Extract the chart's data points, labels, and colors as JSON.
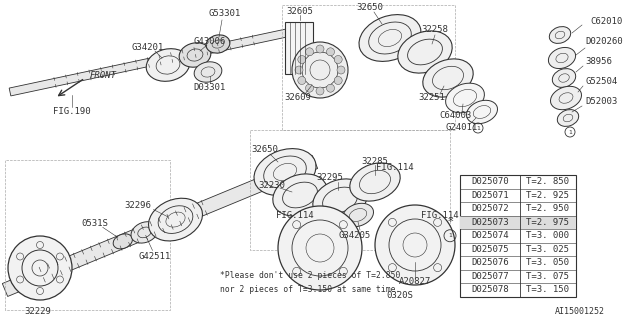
{
  "background_color": "#ffffff",
  "line_color": "#333333",
  "diagram_id": "AI15001252",
  "table_data": [
    [
      "D025070",
      "T=2. 850"
    ],
    [
      "D025071",
      "T=2. 925"
    ],
    [
      "D025072",
      "T=2. 950"
    ],
    [
      "D025073",
      "T=2. 975"
    ],
    [
      "D025074",
      "T=3. 000"
    ],
    [
      "D025075",
      "T=3. 025"
    ],
    [
      "D025076",
      "T=3. 050"
    ],
    [
      "D025077",
      "T=3. 075"
    ],
    [
      "D025078",
      "T=3. 150"
    ]
  ],
  "footnote_line1": "*Please don't use 2 pieces of T=2.850",
  "footnote_line2": "nor 2 pieces of T=3.150 at same time."
}
